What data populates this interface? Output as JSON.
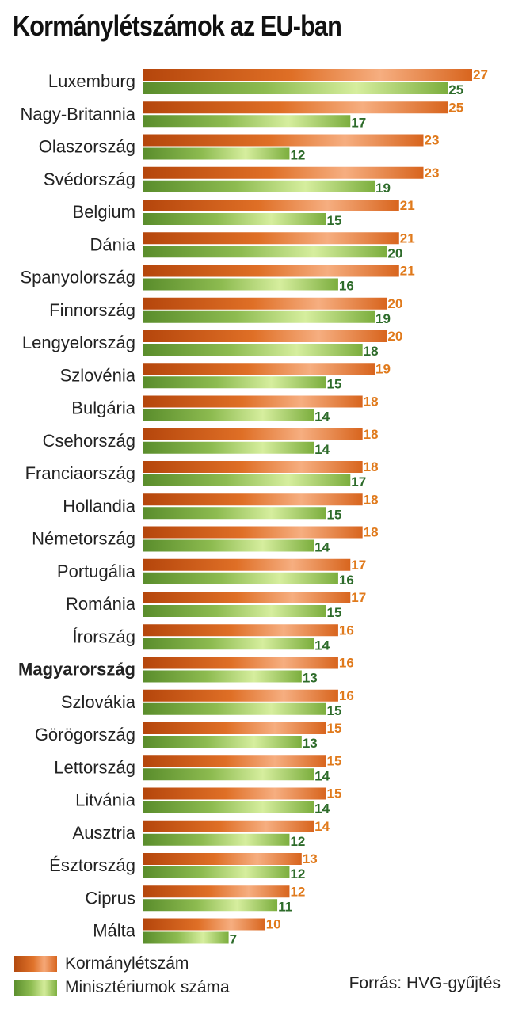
{
  "title": "Kormánylétszámok az EU-ban",
  "source": "Forrás: HVG-gyűjtés",
  "legend": {
    "kormany": "Kormánylétszám",
    "miniszterium": "Minisztériumok száma"
  },
  "colors": {
    "kormany": "#e0732b",
    "miniszterium": "#8fbd52",
    "kormany_label": "#e07a1c",
    "miniszterium_label": "#2d6b2a"
  },
  "chart_data": {
    "type": "bar",
    "orientation": "horizontal",
    "categories": [
      "Luxemburg",
      "Nagy-Britannia",
      "Olaszország",
      "Svédország",
      "Belgium",
      "Dánia",
      "Spanyolország",
      "Finnország",
      "Lengyelország",
      "Szlovénia",
      "Bulgária",
      "Csehország",
      "Franciaország",
      "Hollandia",
      "Németország",
      "Portugália",
      "Románia",
      "Írország",
      "Magyarország",
      "Szlovákia",
      "Görögország",
      "Lettország",
      "Litvánia",
      "Ausztria",
      "Észtország",
      "Ciprus",
      "Málta"
    ],
    "highlighted_category": "Magyarország",
    "series": [
      {
        "name": "Kormánylétszám",
        "values": [
          27,
          25,
          23,
          23,
          21,
          21,
          21,
          20,
          20,
          19,
          18,
          18,
          18,
          18,
          18,
          17,
          17,
          16,
          16,
          16,
          15,
          15,
          15,
          14,
          13,
          12,
          10
        ]
      },
      {
        "name": "Minisztériumok száma",
        "values": [
          25,
          17,
          12,
          19,
          15,
          20,
          16,
          19,
          18,
          15,
          14,
          14,
          17,
          15,
          14,
          16,
          15,
          14,
          13,
          15,
          13,
          14,
          14,
          12,
          12,
          11,
          7
        ]
      }
    ],
    "xlim": [
      0,
      27
    ],
    "grid": false,
    "legend_position": "bottom-left"
  }
}
